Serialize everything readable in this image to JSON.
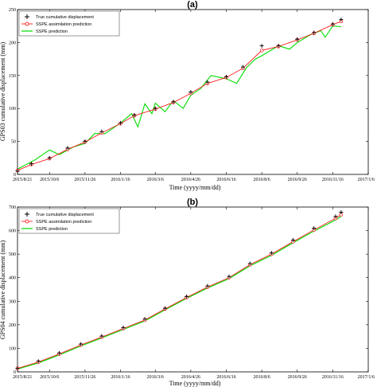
{
  "colors": {
    "true_series": "#000000",
    "assimilation_series": "#ff0000",
    "prediction_series": "#00dd00"
  },
  "chart_data": [
    {
      "type": "line",
      "title": "(a)",
      "xlabel": "Time  (yyyy/mm/dd)",
      "ylabel": "GPS03 cumulative displacement  (mm)",
      "x_ticks": [
        "2015/8/21",
        "2015/10/6",
        "2015/11/26",
        "2016/1/16",
        "2016/3/6",
        "2016/4/26",
        "2016/6/16",
        "2016/8/6",
        "2016/9/26",
        "2016/11/16",
        "2017/1/6"
      ],
      "y_ticks": [
        0,
        50,
        100,
        150,
        200,
        250
      ],
      "xlim": [
        "2015-08-21",
        "2017-01-06"
      ],
      "ylim": [
        0,
        250
      ],
      "grid": false,
      "legend_position": "top-left",
      "series": [
        {
          "name": "True cumulative displacement",
          "marker": "plus",
          "line": false,
          "points": [
            [
              "2015-08-21",
              5
            ],
            [
              "2015-09-10",
              16
            ],
            [
              "2015-10-06",
              25
            ],
            [
              "2015-11-01",
              40
            ],
            [
              "2015-11-26",
              50
            ],
            [
              "2015-12-20",
              65
            ],
            [
              "2016-01-16",
              78
            ],
            [
              "2016-02-05",
              90
            ],
            [
              "2016-03-06",
              100
            ],
            [
              "2016-04-01",
              110
            ],
            [
              "2016-04-26",
              125
            ],
            [
              "2016-05-20",
              140
            ],
            [
              "2016-06-16",
              148
            ],
            [
              "2016-07-10",
              163
            ],
            [
              "2016-08-06",
              195
            ],
            [
              "2016-08-30",
              195
            ],
            [
              "2016-09-26",
              205
            ],
            [
              "2016-10-20",
              215
            ],
            [
              "2016-11-16",
              228
            ],
            [
              "2016-11-28",
              235
            ]
          ]
        },
        {
          "name": "SSPE assimilation prediction",
          "marker": "circle",
          "line": true,
          "points": [
            [
              "2015-08-21",
              6
            ],
            [
              "2015-09-10",
              15
            ],
            [
              "2015-10-06",
              24
            ],
            [
              "2015-11-01",
              38
            ],
            [
              "2015-11-26",
              49
            ],
            [
              "2015-12-20",
              63
            ],
            [
              "2016-01-16",
              77
            ],
            [
              "2016-02-05",
              89
            ],
            [
              "2016-03-06",
              99
            ],
            [
              "2016-04-01",
              109
            ],
            [
              "2016-04-26",
              123
            ],
            [
              "2016-05-20",
              138
            ],
            [
              "2016-06-16",
              147
            ],
            [
              "2016-07-10",
              161
            ],
            [
              "2016-08-06",
              188
            ],
            [
              "2016-08-30",
              194
            ],
            [
              "2016-09-26",
              204
            ],
            [
              "2016-10-20",
              214
            ],
            [
              "2016-11-16",
              227
            ],
            [
              "2016-11-28",
              232
            ]
          ]
        },
        {
          "name": "SSPE prediction",
          "marker": "none",
          "line": true,
          "points": [
            [
              "2015-08-21",
              8
            ],
            [
              "2015-09-15",
              22
            ],
            [
              "2015-10-06",
              37
            ],
            [
              "2015-10-20",
              30
            ],
            [
              "2015-11-10",
              42
            ],
            [
              "2015-11-26",
              47
            ],
            [
              "2015-12-10",
              62
            ],
            [
              "2015-12-25",
              62
            ],
            [
              "2016-01-16",
              78
            ],
            [
              "2016-02-01",
              92
            ],
            [
              "2016-02-10",
              72
            ],
            [
              "2016-02-20",
              107
            ],
            [
              "2016-03-01",
              92
            ],
            [
              "2016-03-06",
              108
            ],
            [
              "2016-03-20",
              95
            ],
            [
              "2016-04-01",
              112
            ],
            [
              "2016-04-15",
              100
            ],
            [
              "2016-04-26",
              120
            ],
            [
              "2016-05-10",
              130
            ],
            [
              "2016-05-25",
              150
            ],
            [
              "2016-06-16",
              145
            ],
            [
              "2016-07-01",
              138
            ],
            [
              "2016-07-15",
              162
            ],
            [
              "2016-07-28",
              175
            ],
            [
              "2016-08-06",
              180
            ],
            [
              "2016-08-30",
              195
            ],
            [
              "2016-09-15",
              190
            ],
            [
              "2016-09-26",
              200
            ],
            [
              "2016-10-15",
              212
            ],
            [
              "2016-10-30",
              218
            ],
            [
              "2016-11-05",
              208
            ],
            [
              "2016-11-16",
              225
            ],
            [
              "2016-11-28",
              224
            ]
          ]
        }
      ]
    },
    {
      "type": "line",
      "title": "(b)",
      "xlabel": "Time  (yyyy/mm/dd)",
      "ylabel": "GPS04 cumulative displacement  (mm)",
      "x_ticks": [
        "2015/8/21",
        "2015/10/6",
        "2015/11/26",
        "2016/1/16",
        "2016/3/6",
        "2016/4/26",
        "2016/6/16",
        "2016/8/6",
        "2016/9/26",
        "2016/11/16",
        "2017/1/6"
      ],
      "y_ticks": [
        0,
        100,
        200,
        300,
        400,
        500,
        600,
        700
      ],
      "xlim": [
        "2015-08-21",
        "2017-01-06"
      ],
      "ylim": [
        0,
        700
      ],
      "grid": false,
      "legend_position": "top-left",
      "series": [
        {
          "name": "True cumulative displacement",
          "marker": "plus",
          "line": false,
          "points": [
            [
              "2015-08-21",
              15
            ],
            [
              "2015-09-20",
              45
            ],
            [
              "2015-10-20",
              80
            ],
            [
              "2015-11-20",
              118
            ],
            [
              "2015-12-20",
              152
            ],
            [
              "2016-01-20",
              188
            ],
            [
              "2016-02-20",
              225
            ],
            [
              "2016-03-20",
              270
            ],
            [
              "2016-04-20",
              320
            ],
            [
              "2016-05-20",
              365
            ],
            [
              "2016-06-20",
              405
            ],
            [
              "2016-07-20",
              460
            ],
            [
              "2016-08-20",
              505
            ],
            [
              "2016-09-20",
              560
            ],
            [
              "2016-10-20",
              610
            ],
            [
              "2016-11-20",
              660
            ],
            [
              "2016-11-28",
              678
            ]
          ]
        },
        {
          "name": "SSPE assimilation prediction",
          "marker": "circle",
          "line": true,
          "points": [
            [
              "2015-08-21",
              15
            ],
            [
              "2015-09-20",
              42
            ],
            [
              "2015-10-20",
              76
            ],
            [
              "2015-11-20",
              114
            ],
            [
              "2015-12-20",
              148
            ],
            [
              "2016-01-20",
              184
            ],
            [
              "2016-02-20",
              220
            ],
            [
              "2016-03-20",
              267
            ],
            [
              "2016-04-20",
              316
            ],
            [
              "2016-05-20",
              360
            ],
            [
              "2016-06-20",
              400
            ],
            [
              "2016-07-20",
              455
            ],
            [
              "2016-08-20",
              500
            ],
            [
              "2016-09-20",
              553
            ],
            [
              "2016-10-20",
              603
            ],
            [
              "2016-11-20",
              652
            ],
            [
              "2016-11-28",
              668
            ]
          ]
        },
        {
          "name": "SSPE prediction",
          "marker": "none",
          "line": true,
          "points": [
            [
              "2015-08-21",
              12
            ],
            [
              "2015-09-20",
              38
            ],
            [
              "2015-10-20",
              72
            ],
            [
              "2015-11-20",
              110
            ],
            [
              "2015-12-20",
              144
            ],
            [
              "2016-01-20",
              180
            ],
            [
              "2016-02-20",
              216
            ],
            [
              "2016-03-20",
              263
            ],
            [
              "2016-04-20",
              312
            ],
            [
              "2016-05-20",
              356
            ],
            [
              "2016-06-20",
              396
            ],
            [
              "2016-07-20",
              450
            ],
            [
              "2016-08-20",
              495
            ],
            [
              "2016-09-20",
              548
            ],
            [
              "2016-10-20",
              598
            ],
            [
              "2016-11-20",
              645
            ],
            [
              "2016-11-28",
              660
            ]
          ]
        }
      ]
    }
  ]
}
